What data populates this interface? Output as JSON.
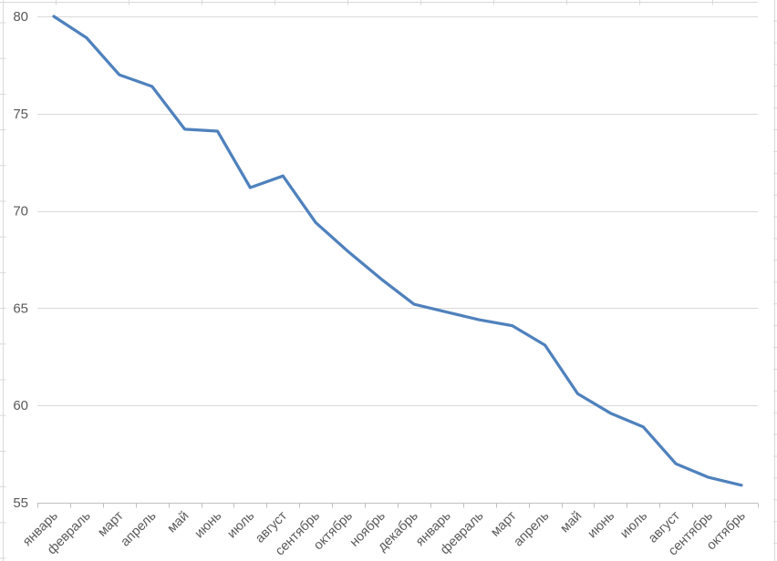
{
  "chart_data": {
    "type": "line",
    "title": "",
    "xlabel": "",
    "ylabel": "",
    "legend": "none",
    "grid": "horizontal-major",
    "ylim": [
      55,
      80
    ],
    "yticks": [
      55,
      60,
      65,
      70,
      75,
      80
    ],
    "categories": [
      "январь",
      "февраль",
      "март",
      "апрель",
      "май",
      "июнь",
      "июль",
      "август",
      "сентябрь",
      "октябрь",
      "ноябрь",
      "декабрь",
      "январь",
      "февраль",
      "март",
      "апрель",
      "май",
      "июнь",
      "июль",
      "август",
      "сентябрь",
      "октябрь"
    ],
    "series": [
      {
        "name": "",
        "values": [
          80,
          78.9,
          77,
          76.4,
          74.2,
          74.1,
          71.2,
          71.8,
          69.4,
          67.9,
          66.5,
          65.2,
          64.8,
          64.4,
          64.1,
          63.1,
          60.6,
          59.6,
          58.9,
          57,
          56.3,
          55.9
        ]
      }
    ],
    "colors": {
      "series_line": "#4F81BD",
      "gridline": "#D9D9D9",
      "axis_line": "#BFBFBF",
      "tick_mark": "#BFBFBF",
      "tick_label": "#595959",
      "sheet_gridline": "#D9D9D9",
      "background": "#FFFFFF"
    }
  }
}
